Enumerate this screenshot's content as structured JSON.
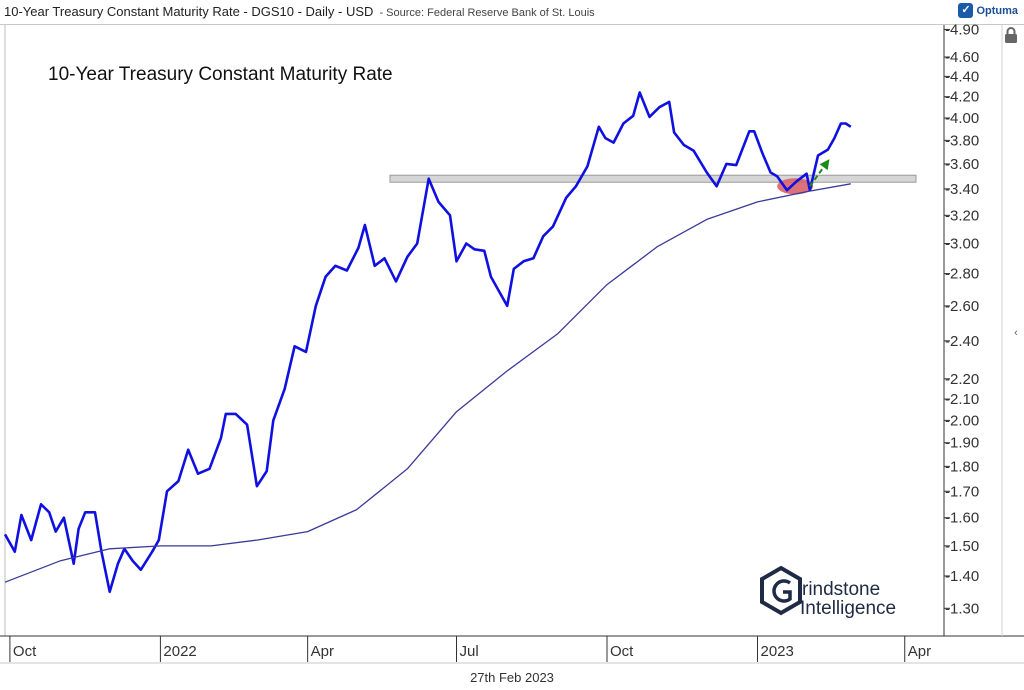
{
  "header": {
    "title": "10-Year Treasury Constant Maturity Rate - DGS10 - Daily - USD",
    "source": "- Source: Federal Reserve Bank of St. Louis",
    "logo_text": "Optuma",
    "logo_icon": "optuma-logo-icon"
  },
  "watermark": {
    "line1": "rindstone",
    "line2": "Intelligence",
    "icon": "grindstone-logo-icon"
  },
  "footer": {
    "date": "27th Feb 2023"
  },
  "colors": {
    "price": "#1010e0",
    "moving_average": "#3a3a9a",
    "resistance_band": "#d6d6d6",
    "highlight": "#d9626a",
    "arrow": "#1a8a1a"
  },
  "chart_data": {
    "type": "line",
    "title": "10-Year Treasury Constant Maturity Rate",
    "y_scale": "log",
    "ylim": [
      1.22,
      4.95
    ],
    "y_ticks": [
      1.3,
      1.4,
      1.5,
      1.6,
      1.7,
      1.8,
      1.9,
      2.0,
      2.1,
      2.2,
      2.4,
      2.6,
      2.8,
      3.0,
      3.2,
      3.4,
      3.6,
      3.8,
      4.0,
      4.2,
      4.4,
      4.6,
      4.9
    ],
    "y_tick_labels": [
      "1.30",
      "1.40",
      "1.50",
      "1.60",
      "1.70",
      "1.80",
      "1.90",
      "2.00",
      "2.10",
      "2.20",
      "2.40",
      "2.60",
      "2.80",
      "3.00",
      "3.20",
      "3.40",
      "3.60",
      "3.80",
      "4.00",
      "4.20",
      "4.40",
      "4.60",
      "4.90"
    ],
    "xlim": [
      "2021-09-28",
      "2023-04-25"
    ],
    "x_ticks": [
      {
        "date": "2021-10-01",
        "label": "Oct"
      },
      {
        "date": "2022-01-01",
        "label": "2022"
      },
      {
        "date": "2022-04-01",
        "label": "Apr"
      },
      {
        "date": "2022-07-01",
        "label": "Jul"
      },
      {
        "date": "2022-10-01",
        "label": "Oct"
      },
      {
        "date": "2023-01-01",
        "label": "2023"
      },
      {
        "date": "2023-04-01",
        "label": "Apr"
      }
    ],
    "resistance_level": 3.48,
    "series": [
      {
        "values": [
          [
            "2021-09-28",
            1.54
          ],
          [
            "2021-10-04",
            1.48
          ],
          [
            "2021-10-08",
            1.61
          ],
          [
            "2021-10-14",
            1.52
          ],
          [
            "2021-10-20",
            1.65
          ],
          [
            "2021-10-25",
            1.62
          ],
          [
            "2021-10-29",
            1.55
          ],
          [
            "2021-11-03",
            1.6
          ],
          [
            "2021-11-09",
            1.44
          ],
          [
            "2021-11-12",
            1.56
          ],
          [
            "2021-11-16",
            1.62
          ],
          [
            "2021-11-22",
            1.62
          ],
          [
            "2021-11-26",
            1.48
          ],
          [
            "2021-12-01",
            1.35
          ],
          [
            "2021-12-06",
            1.44
          ],
          [
            "2021-12-10",
            1.49
          ],
          [
            "2021-12-15",
            1.45
          ],
          [
            "2021-12-20",
            1.42
          ],
          [
            "2021-12-27",
            1.48
          ],
          [
            "2021-12-31",
            1.52
          ],
          [
            "2022-01-05",
            1.7
          ],
          [
            "2022-01-12",
            1.74
          ],
          [
            "2022-01-18",
            1.87
          ],
          [
            "2022-01-24",
            1.77
          ],
          [
            "2022-01-31",
            1.79
          ],
          [
            "2022-02-07",
            1.92
          ],
          [
            "2022-02-10",
            2.03
          ],
          [
            "2022-02-16",
            2.03
          ],
          [
            "2022-02-23",
            1.98
          ],
          [
            "2022-03-01",
            1.72
          ],
          [
            "2022-03-07",
            1.78
          ],
          [
            "2022-03-11",
            2.0
          ],
          [
            "2022-03-18",
            2.15
          ],
          [
            "2022-03-24",
            2.37
          ],
          [
            "2022-03-31",
            2.34
          ],
          [
            "2022-04-06",
            2.6
          ],
          [
            "2022-04-12",
            2.78
          ],
          [
            "2022-04-18",
            2.85
          ],
          [
            "2022-04-25",
            2.82
          ],
          [
            "2022-05-02",
            2.97
          ],
          [
            "2022-05-06",
            3.13
          ],
          [
            "2022-05-12",
            2.85
          ],
          [
            "2022-05-18",
            2.9
          ],
          [
            "2022-05-25",
            2.75
          ],
          [
            "2022-06-01",
            2.91
          ],
          [
            "2022-06-07",
            3.0
          ],
          [
            "2022-06-14",
            3.48
          ],
          [
            "2022-06-20",
            3.3
          ],
          [
            "2022-06-27",
            3.2
          ],
          [
            "2022-07-01",
            2.88
          ],
          [
            "2022-07-07",
            3.0
          ],
          [
            "2022-07-12",
            2.96
          ],
          [
            "2022-07-18",
            2.95
          ],
          [
            "2022-07-22",
            2.78
          ],
          [
            "2022-08-01",
            2.6
          ],
          [
            "2022-08-05",
            2.83
          ],
          [
            "2022-08-11",
            2.88
          ],
          [
            "2022-08-17",
            2.9
          ],
          [
            "2022-08-23",
            3.05
          ],
          [
            "2022-08-29",
            3.12
          ],
          [
            "2022-09-06",
            3.33
          ],
          [
            "2022-09-12",
            3.42
          ],
          [
            "2022-09-19",
            3.58
          ],
          [
            "2022-09-26",
            3.92
          ],
          [
            "2022-09-30",
            3.82
          ],
          [
            "2022-10-05",
            3.78
          ],
          [
            "2022-10-11",
            3.95
          ],
          [
            "2022-10-17",
            4.02
          ],
          [
            "2022-10-21",
            4.24
          ],
          [
            "2022-10-27",
            4.01
          ],
          [
            "2022-11-02",
            4.1
          ],
          [
            "2022-11-08",
            4.15
          ],
          [
            "2022-11-11",
            3.87
          ],
          [
            "2022-11-17",
            3.76
          ],
          [
            "2022-11-23",
            3.71
          ],
          [
            "2022-12-01",
            3.53
          ],
          [
            "2022-12-07",
            3.42
          ],
          [
            "2022-12-13",
            3.6
          ],
          [
            "2022-12-19",
            3.59
          ],
          [
            "2022-12-27",
            3.88
          ],
          [
            "2022-12-30",
            3.88
          ],
          [
            "2023-01-04",
            3.69
          ],
          [
            "2023-01-09",
            3.53
          ],
          [
            "2023-01-13",
            3.5
          ],
          [
            "2023-01-19",
            3.39
          ],
          [
            "2023-01-25",
            3.46
          ],
          [
            "2023-01-31",
            3.52
          ],
          [
            "2023-02-02",
            3.39
          ],
          [
            "2023-02-07",
            3.67
          ],
          [
            "2023-02-13",
            3.72
          ],
          [
            "2023-02-17",
            3.82
          ],
          [
            "2023-02-21",
            3.95
          ],
          [
            "2023-02-24",
            3.95
          ],
          [
            "2023-02-27",
            3.92
          ]
        ]
      },
      {
        "values": [
          [
            "2021-09-28",
            1.38
          ],
          [
            "2021-11-01",
            1.45
          ],
          [
            "2021-12-01",
            1.49
          ],
          [
            "2022-01-01",
            1.5
          ],
          [
            "2022-02-01",
            1.5
          ],
          [
            "2022-03-01",
            1.52
          ],
          [
            "2022-04-01",
            1.55
          ],
          [
            "2022-05-01",
            1.63
          ],
          [
            "2022-06-01",
            1.79
          ],
          [
            "2022-07-01",
            2.04
          ],
          [
            "2022-08-01",
            2.24
          ],
          [
            "2022-09-01",
            2.44
          ],
          [
            "2022-10-01",
            2.73
          ],
          [
            "2022-11-01",
            2.98
          ],
          [
            "2022-12-01",
            3.17
          ],
          [
            "2023-01-01",
            3.3
          ],
          [
            "2023-02-01",
            3.38
          ],
          [
            "2023-02-27",
            3.44
          ]
        ]
      }
    ]
  }
}
